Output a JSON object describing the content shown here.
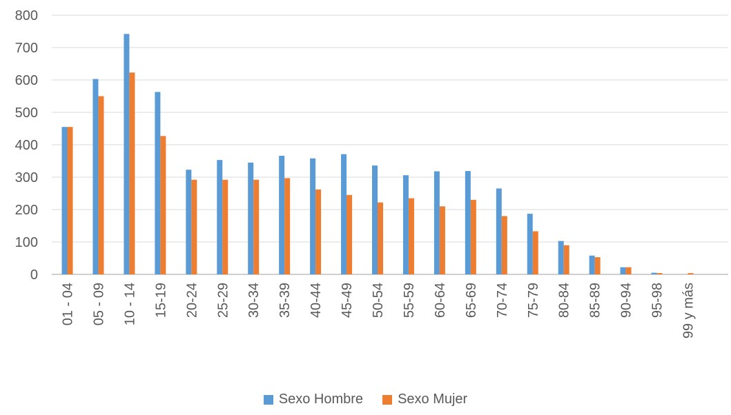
{
  "colors": {
    "hombre": "#5B9BD5",
    "mujer": "#ED7D31",
    "grid": "#d9d9d9",
    "axis": "#bfbfbf",
    "text": "#595959"
  },
  "chart_data": {
    "type": "bar",
    "categories": [
      "01 - 04",
      "05 - 09",
      "10 - 14",
      "15-19",
      "20-24",
      "25-29",
      "30-34",
      "35-39",
      "40-44",
      "45-49",
      "50-54",
      "55-59",
      "60-64",
      "65-69",
      "70-74",
      "75-79",
      "80-84",
      "85-89",
      "90-94",
      "95-98",
      "99 y más"
    ],
    "series": [
      {
        "name": "Sexo Hombre",
        "values": [
          455,
          603,
          742,
          563,
          323,
          353,
          345,
          366,
          358,
          371,
          336,
          306,
          318,
          319,
          265,
          187,
          103,
          58,
          22,
          5,
          0
        ]
      },
      {
        "name": "Sexo Mujer",
        "values": [
          455,
          550,
          623,
          427,
          292,
          292,
          292,
          297,
          262,
          245,
          222,
          235,
          210,
          230,
          180,
          133,
          90,
          53,
          22,
          4,
          4
        ]
      }
    ],
    "yticks": [
      "0",
      "100",
      "200",
      "300",
      "400",
      "500",
      "600",
      "700",
      "800"
    ],
    "ylim": [
      0,
      800
    ],
    "grid": true,
    "legend_position": "bottom"
  }
}
